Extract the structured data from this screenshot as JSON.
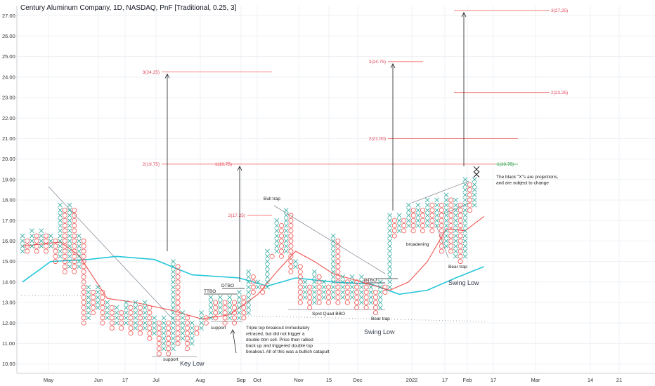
{
  "chart_data": {
    "type": "point-and-figure",
    "title": "Century Aluminum Company, 1D, NASDAQ, PnF [Traditional, 0.25, 3]",
    "ylim": [
      9.6,
      27.35
    ],
    "yticks": [
      "10.00",
      "11.00",
      "12.00",
      "13.00",
      "14.00",
      "15.00",
      "16.00",
      "17.00",
      "18.00",
      "19.00",
      "20.00",
      "21.00",
      "22.00",
      "23.00",
      "24.00",
      "25.00",
      "26.00",
      "27.00"
    ],
    "xticks": [
      "May",
      "Jun",
      "17",
      "Jul",
      "Aug",
      "Sep",
      "Oct",
      "Nov",
      "15",
      "Dec",
      "2022",
      "17",
      "Feb",
      "17",
      "Mar",
      "14",
      "21"
    ],
    "columns": [
      {
        "t": "X",
        "lo": 15.5,
        "hi": 16.25
      },
      {
        "t": "O",
        "lo": 15.5,
        "hi": 16.0
      },
      {
        "t": "X",
        "lo": 15.75,
        "hi": 16.5
      },
      {
        "t": "O",
        "lo": 15.5,
        "hi": 16.25
      },
      {
        "t": "X",
        "lo": 15.75,
        "hi": 16.5
      },
      {
        "t": "O",
        "lo": 15.5,
        "hi": 16.25
      },
      {
        "t": "X",
        "lo": 15.75,
        "hi": 16.25
      },
      {
        "t": "O",
        "lo": 15.0,
        "hi": 16.0
      },
      {
        "t": "X",
        "lo": 15.25,
        "hi": 17.75
      },
      {
        "t": "O",
        "lo": 14.5,
        "hi": 17.5
      },
      {
        "t": "X",
        "lo": 14.75,
        "hi": 17.75
      },
      {
        "t": "O",
        "lo": 14.5,
        "hi": 17.5
      },
      {
        "t": "X",
        "lo": 14.75,
        "hi": 16.25
      },
      {
        "t": "O",
        "lo": 12.0,
        "hi": 16.0
      },
      {
        "t": "X",
        "lo": 12.25,
        "hi": 13.75
      },
      {
        "t": "O",
        "lo": 12.5,
        "hi": 13.5
      },
      {
        "t": "X",
        "lo": 12.75,
        "hi": 13.75
      },
      {
        "t": "O",
        "lo": 12.0,
        "hi": 13.5
      },
      {
        "t": "X",
        "lo": 12.25,
        "hi": 13.0
      },
      {
        "t": "O",
        "lo": 11.75,
        "hi": 12.75
      },
      {
        "t": "X",
        "lo": 12.0,
        "hi": 12.75
      },
      {
        "t": "O",
        "lo": 11.75,
        "hi": 12.5
      },
      {
        "t": "X",
        "lo": 12.0,
        "hi": 13.0
      },
      {
        "t": "O",
        "lo": 11.5,
        "hi": 12.75
      },
      {
        "t": "X",
        "lo": 11.75,
        "hi": 13.0
      },
      {
        "t": "O",
        "lo": 11.5,
        "hi": 12.75
      },
      {
        "t": "X",
        "lo": 11.75,
        "hi": 13.0
      },
      {
        "t": "O",
        "lo": 11.25,
        "hi": 12.75
      },
      {
        "t": "X",
        "lo": 11.5,
        "hi": 12.25
      },
      {
        "t": "O",
        "lo": 10.5,
        "hi": 12.0
      },
      {
        "t": "X",
        "lo": 10.75,
        "hi": 12.25
      },
      {
        "t": "O",
        "lo": 10.5,
        "hi": 12.0
      },
      {
        "t": "X",
        "lo": 10.75,
        "hi": 15.0
      },
      {
        "t": "O",
        "lo": 11.0,
        "hi": 14.75
      },
      {
        "t": "X",
        "lo": 11.25,
        "hi": 12.5
      },
      {
        "t": "O",
        "lo": 10.75,
        "hi": 12.25
      },
      {
        "t": "X",
        "lo": 11.0,
        "hi": 12.0
      },
      {
        "t": "O",
        "lo": 11.5,
        "hi": 11.75
      },
      {
        "t": "X",
        "lo": 11.75,
        "hi": 12.5
      },
      {
        "t": "O",
        "lo": 12.0,
        "hi": 12.25
      },
      {
        "t": "X",
        "lo": 12.25,
        "hi": 13.25
      },
      {
        "t": "O",
        "lo": 12.25,
        "hi": 13.0
      },
      {
        "t": "X",
        "lo": 12.5,
        "hi": 13.25
      },
      {
        "t": "O",
        "lo": 12.0,
        "hi": 13.0
      },
      {
        "t": "X",
        "lo": 12.25,
        "hi": 13.25
      },
      {
        "t": "O",
        "lo": 12.0,
        "hi": 13.0
      },
      {
        "t": "X",
        "lo": 12.25,
        "hi": 13.5
      },
      {
        "t": "O",
        "lo": 12.25,
        "hi": 13.25
      },
      {
        "t": "X",
        "lo": 12.5,
        "hi": 14.5
      },
      {
        "t": "O",
        "lo": 13.5,
        "hi": 14.25
      },
      {
        "t": "X",
        "lo": 13.75,
        "hi": 14.0
      },
      {
        "t": "O",
        "lo": 13.5,
        "hi": 13.75
      },
      {
        "t": "X",
        "lo": 13.75,
        "hi": 15.5
      },
      {
        "t": "O",
        "lo": 15.25,
        "hi": 15.25
      },
      {
        "t": "X",
        "lo": 15.5,
        "hi": 17.0
      },
      {
        "t": "O",
        "lo": 15.25,
        "hi": 16.75
      },
      {
        "t": "X",
        "lo": 15.5,
        "hi": 17.5
      },
      {
        "t": "O",
        "lo": 14.5,
        "hi": 17.25
      },
      {
        "t": "X",
        "lo": 14.75,
        "hi": 15.0
      },
      {
        "t": "O",
        "lo": 13.0,
        "hi": 14.75
      },
      {
        "t": "X",
        "lo": 13.25,
        "hi": 14.0
      },
      {
        "t": "O",
        "lo": 12.75,
        "hi": 13.75
      },
      {
        "t": "X",
        "lo": 13.0,
        "hi": 14.5
      },
      {
        "t": "O",
        "lo": 13.0,
        "hi": 14.25
      },
      {
        "t": "X",
        "lo": 13.25,
        "hi": 14.0
      },
      {
        "t": "O",
        "lo": 13.0,
        "hi": 13.75
      },
      {
        "t": "X",
        "lo": 13.25,
        "hi": 16.25
      },
      {
        "t": "O",
        "lo": 13.0,
        "hi": 16.0
      },
      {
        "t": "X",
        "lo": 13.25,
        "hi": 14.25
      },
      {
        "t": "O",
        "lo": 13.0,
        "hi": 14.0
      },
      {
        "t": "X",
        "lo": 13.25,
        "hi": 14.25
      },
      {
        "t": "O",
        "lo": 12.75,
        "hi": 14.0
      },
      {
        "t": "X",
        "lo": 13.0,
        "hi": 14.25
      },
      {
        "t": "O",
        "lo": 12.75,
        "hi": 14.0
      },
      {
        "t": "X",
        "lo": 13.0,
        "hi": 13.75
      },
      {
        "t": "O",
        "lo": 12.5,
        "hi": 13.5
      },
      {
        "t": "X",
        "lo": 12.75,
        "hi": 14.0
      },
      {
        "t": "O",
        "lo": 13.5,
        "hi": 13.75
      },
      {
        "t": "X",
        "lo": 13.75,
        "hi": 17.25
      },
      {
        "t": "O",
        "lo": 16.25,
        "hi": 17.0
      },
      {
        "t": "X",
        "lo": 16.5,
        "hi": 17.25
      },
      {
        "t": "O",
        "lo": 16.5,
        "hi": 17.0
      },
      {
        "t": "X",
        "lo": 16.75,
        "hi": 17.75
      },
      {
        "t": "O",
        "lo": 16.5,
        "hi": 17.5
      },
      {
        "t": "X",
        "lo": 16.75,
        "hi": 17.75
      },
      {
        "t": "O",
        "lo": 16.5,
        "hi": 17.5
      },
      {
        "t": "X",
        "lo": 16.75,
        "hi": 18.0
      },
      {
        "t": "O",
        "lo": 16.5,
        "hi": 17.75
      },
      {
        "t": "X",
        "lo": 16.75,
        "hi": 18.0
      },
      {
        "t": "O",
        "lo": 15.5,
        "hi": 17.75
      },
      {
        "t": "X",
        "lo": 15.75,
        "hi": 18.25
      },
      {
        "t": "O",
        "lo": 15.5,
        "hi": 18.0
      },
      {
        "t": "X",
        "lo": 15.25,
        "hi": 18.0
      },
      {
        "t": "O",
        "lo": 15.0,
        "hi": 17.75
      },
      {
        "t": "X",
        "lo": 15.25,
        "hi": 19.0
      },
      {
        "t": "O",
        "lo": 17.5,
        "hi": 18.75
      },
      {
        "t": "X",
        "lo": 17.75,
        "hi": 19.0
      }
    ],
    "moving_averages": [
      {
        "name": "slow",
        "color": "#26c6da",
        "points": [
          [
            0,
            14.0
          ],
          [
            6,
            15.0
          ],
          [
            14,
            15.1
          ],
          [
            20,
            15.25
          ],
          [
            28,
            15.1
          ],
          [
            36,
            14.35
          ],
          [
            46,
            14.2
          ],
          [
            52,
            13.8
          ],
          [
            58,
            14.2
          ],
          [
            66,
            14.0
          ],
          [
            74,
            13.9
          ],
          [
            80,
            13.4
          ],
          [
            86,
            13.6
          ],
          [
            92,
            14.2
          ],
          [
            98,
            14.75
          ]
        ]
      },
      {
        "name": "fast",
        "color": "#ef5350",
        "points": [
          [
            0,
            15.75
          ],
          [
            8,
            15.95
          ],
          [
            12,
            15.3
          ],
          [
            18,
            13.2
          ],
          [
            24,
            13.0
          ],
          [
            32,
            12.6
          ],
          [
            38,
            12.2
          ],
          [
            44,
            12.4
          ],
          [
            50,
            13.4
          ],
          [
            54,
            14.5
          ],
          [
            58,
            15.5
          ],
          [
            62,
            15.0
          ],
          [
            66,
            14.4
          ],
          [
            72,
            14.0
          ],
          [
            78,
            13.6
          ],
          [
            82,
            14.0
          ],
          [
            86,
            15.0
          ],
          [
            90,
            16.6
          ],
          [
            94,
            16.5
          ],
          [
            98,
            17.2
          ]
        ]
      }
    ],
    "projections": [
      {
        "label": "3(24.25)",
        "y": 24.25
      },
      {
        "label": "2(19.75)",
        "y": 19.75
      },
      {
        "label": "1(19.75)",
        "y": 19.75
      },
      {
        "label": "2(17.25)",
        "y": 17.25
      },
      {
        "label": "3(24.75)",
        "y": 24.75
      },
      {
        "label": "2(21.00)",
        "y": 21.0
      },
      {
        "label": "3(27.25)",
        "y": 27.25
      },
      {
        "label": "2(23.25)",
        "y": 23.25
      },
      {
        "label": "1(19.75)",
        "y": 19.75
      }
    ],
    "annotations": [
      "support",
      "Key Low",
      "support",
      "TTBO",
      "DTBO",
      "Bull trap",
      "Sprd Quad BBO",
      "DTBO",
      "Bear trap",
      "Swing Low",
      "broadening",
      "Bear trap",
      "Swing Low"
    ],
    "notes": [
      "Triple top breakout immediately",
      "retraced, but did not trigger a",
      "double btm sell. Price then rallied",
      "back up and triggered double top",
      "breakout. All of this was a bullish catapult"
    ],
    "projection_note": [
      "The black \"X\"s are projections,",
      "and are subject to change"
    ]
  }
}
